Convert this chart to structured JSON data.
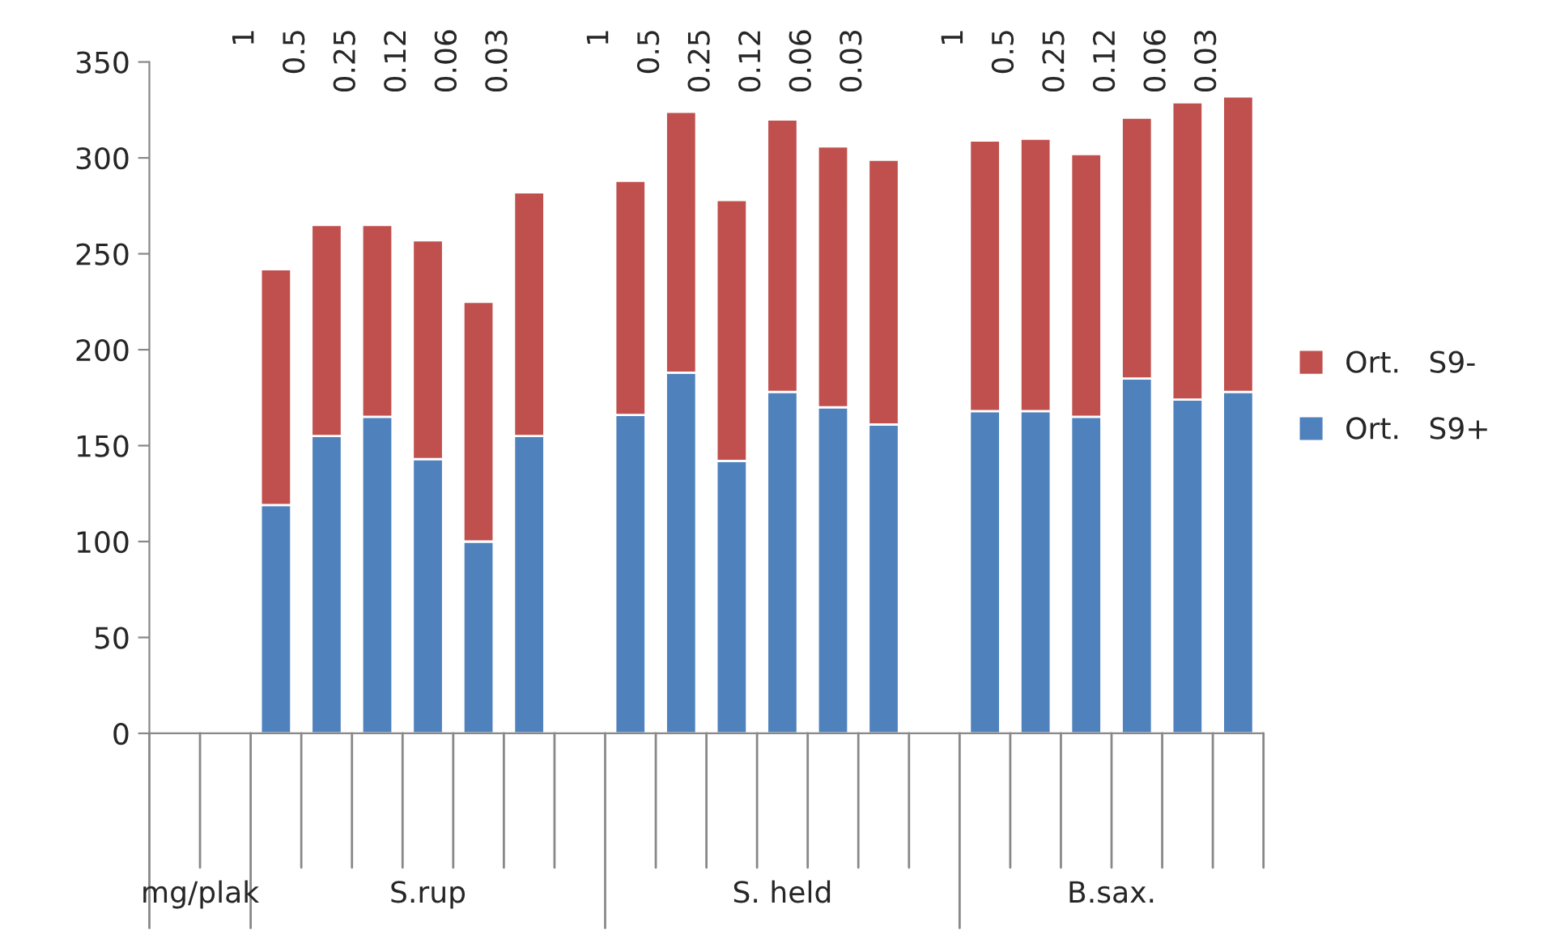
{
  "chart_data": {
    "type": "bar",
    "stacked": true,
    "categories": [
      null,
      null,
      null,
      null,
      null,
      null,
      null,
      null,
      null,
      null,
      null,
      null,
      null,
      null,
      null,
      null,
      null,
      null,
      null,
      null,
      null,
      null
    ],
    "series": [
      {
        "name": "Ort.   S9+",
        "color": "#4f81bd",
        "values": [
          null,
          null,
          119,
          155,
          165,
          143,
          100,
          155,
          null,
          166,
          188,
          142,
          178,
          170,
          161,
          null,
          168,
          168,
          165,
          185,
          174,
          178
        ]
      },
      {
        "name": "Ort.   S9-",
        "color": "#c0504d",
        "values": [
          null,
          null,
          123,
          110,
          100,
          114,
          125,
          127,
          null,
          122,
          136,
          136,
          142,
          136,
          138,
          null,
          141,
          142,
          137,
          136,
          155,
          154
        ]
      }
    ],
    "ylim": [
      0,
      350
    ],
    "yticks": [
      0,
      50,
      100,
      150,
      200,
      250,
      300,
      350
    ],
    "grid": false,
    "legend": "right",
    "annotations": [
      "mg/plak",
      "S.rup",
      "S. held",
      "B.sax.",
      "1",
      "0.5",
      "0.25",
      "0.12",
      "0.06",
      "0.03",
      "1",
      "0.5",
      "0.25",
      "0.12",
      "0.06",
      "0.03",
      "1",
      "0.5",
      "0.25",
      "0.12",
      "0.06",
      "0.03"
    ]
  }
}
